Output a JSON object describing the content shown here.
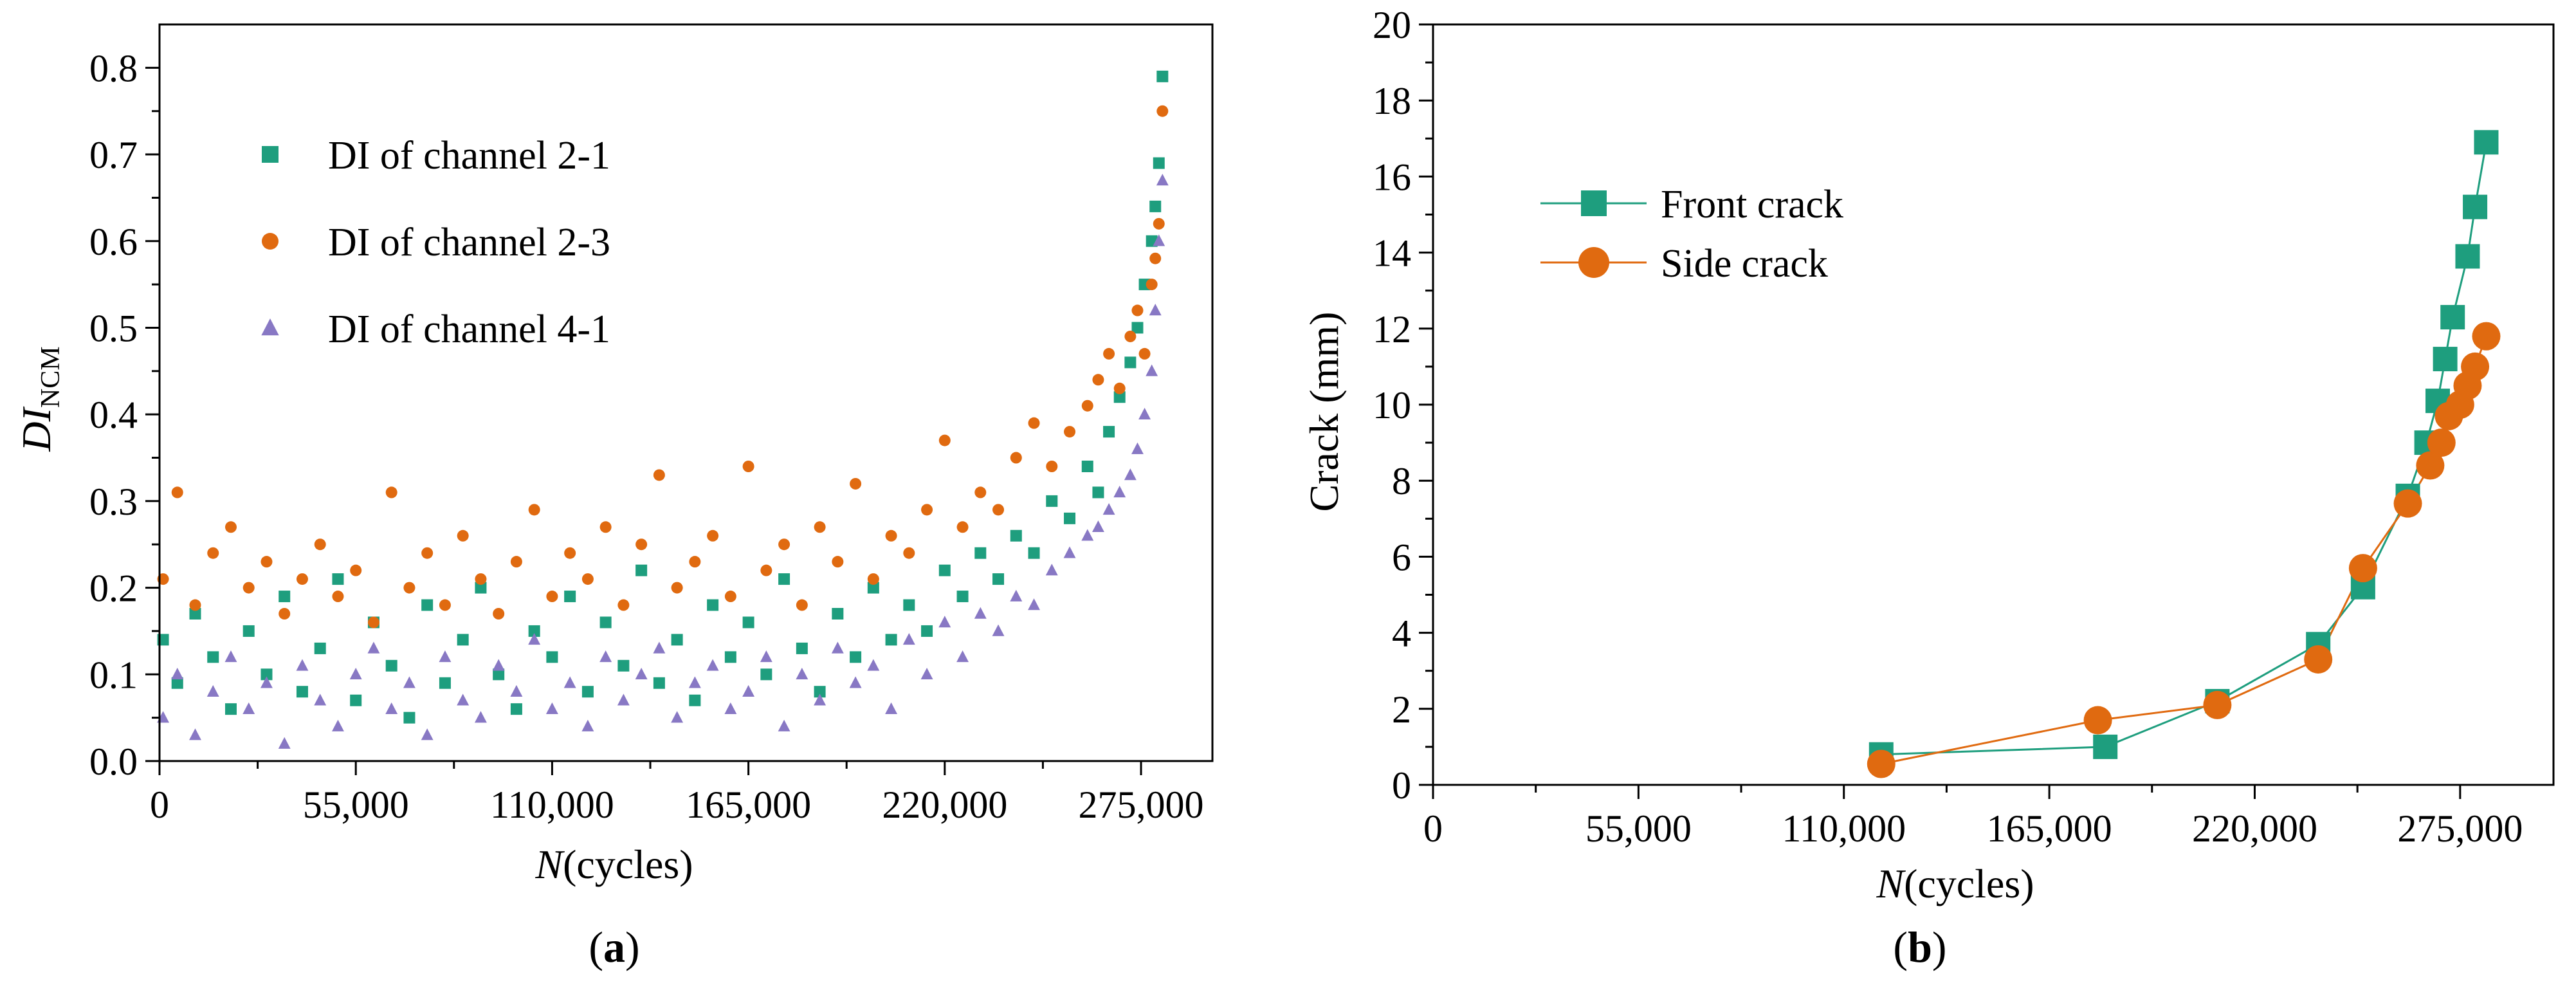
{
  "colors": {
    "green": "#1e9e7e",
    "orange": "#e06a10",
    "purple": "#8878c4",
    "axis": "#000000"
  },
  "panels": {
    "a": {
      "label_open": "(",
      "label_letter": "a",
      "label_close": ")"
    },
    "b": {
      "label_open": "(",
      "label_letter": "b",
      "label_close": ")"
    }
  },
  "chart_data": [
    {
      "id": "a",
      "type": "scatter",
      "title": "",
      "xlabel_italic": "N",
      "xlabel_rest": "(cycles)",
      "ylabel_main": "DI",
      "ylabel_sub": "NCM",
      "xlim": [
        0,
        295000
      ],
      "ylim": [
        0,
        0.85
      ],
      "xticks": [
        0,
        55000,
        110000,
        165000,
        220000,
        275000
      ],
      "xtick_labels": [
        "0",
        "55,000",
        "110,000",
        "165,000",
        "220,000",
        "275,000"
      ],
      "yticks": [
        0.0,
        0.1,
        0.2,
        0.3,
        0.4,
        0.5,
        0.6,
        0.7,
        0.8
      ],
      "ytick_labels": [
        "0.0",
        "0.1",
        "0.2",
        "0.3",
        "0.4",
        "0.5",
        "0.6",
        "0.7",
        "0.8"
      ],
      "legend_position": "top-left",
      "series": [
        {
          "name": "DI of channel 2-1",
          "marker": "square",
          "color": "#1e9e7e",
          "x": [
            1000,
            5000,
            10000,
            15000,
            20000,
            25000,
            30000,
            35000,
            40000,
            45000,
            50000,
            55000,
            60000,
            65000,
            70000,
            75000,
            80000,
            85000,
            90000,
            95000,
            100000,
            105000,
            110000,
            115000,
            120000,
            125000,
            130000,
            135000,
            140000,
            145000,
            150000,
            155000,
            160000,
            165000,
            170000,
            175000,
            180000,
            185000,
            190000,
            195000,
            200000,
            205000,
            210000,
            215000,
            220000,
            225000,
            230000,
            235000,
            240000,
            245000,
            250000,
            255000,
            260000,
            263000,
            266000,
            269000,
            272000,
            274000,
            276000,
            278000,
            279000,
            280000,
            281000
          ],
          "y": [
            0.14,
            0.09,
            0.17,
            0.12,
            0.06,
            0.15,
            0.1,
            0.19,
            0.08,
            0.13,
            0.21,
            0.07,
            0.16,
            0.11,
            0.05,
            0.18,
            0.09,
            0.14,
            0.2,
            0.1,
            0.06,
            0.15,
            0.12,
            0.19,
            0.08,
            0.16,
            0.11,
            0.22,
            0.09,
            0.14,
            0.07,
            0.18,
            0.12,
            0.16,
            0.1,
            0.21,
            0.13,
            0.08,
            0.17,
            0.12,
            0.2,
            0.14,
            0.18,
            0.15,
            0.22,
            0.19,
            0.24,
            0.21,
            0.26,
            0.24,
            0.3,
            0.28,
            0.34,
            0.31,
            0.38,
            0.42,
            0.46,
            0.5,
            0.55,
            0.6,
            0.64,
            0.69,
            0.79
          ]
        },
        {
          "name": "DI of channel 2-3",
          "marker": "circle",
          "color": "#e06a10",
          "x": [
            1000,
            5000,
            10000,
            15000,
            20000,
            25000,
            30000,
            35000,
            40000,
            45000,
            50000,
            55000,
            60000,
            65000,
            70000,
            75000,
            80000,
            85000,
            90000,
            95000,
            100000,
            105000,
            110000,
            115000,
            120000,
            125000,
            130000,
            135000,
            140000,
            145000,
            150000,
            155000,
            160000,
            165000,
            170000,
            175000,
            180000,
            185000,
            190000,
            195000,
            200000,
            205000,
            210000,
            215000,
            220000,
            225000,
            230000,
            235000,
            240000,
            245000,
            250000,
            255000,
            260000,
            263000,
            266000,
            269000,
            272000,
            274000,
            276000,
            278000,
            279000,
            280000,
            281000
          ],
          "y": [
            0.21,
            0.31,
            0.18,
            0.24,
            0.27,
            0.2,
            0.23,
            0.17,
            0.21,
            0.25,
            0.19,
            0.22,
            0.16,
            0.31,
            0.2,
            0.24,
            0.18,
            0.26,
            0.21,
            0.17,
            0.23,
            0.29,
            0.19,
            0.24,
            0.21,
            0.27,
            0.18,
            0.25,
            0.33,
            0.2,
            0.23,
            0.26,
            0.19,
            0.34,
            0.22,
            0.25,
            0.18,
            0.27,
            0.23,
            0.32,
            0.21,
            0.26,
            0.24,
            0.29,
            0.37,
            0.27,
            0.31,
            0.29,
            0.35,
            0.39,
            0.34,
            0.38,
            0.41,
            0.44,
            0.47,
            0.43,
            0.49,
            0.52,
            0.47,
            0.55,
            0.58,
            0.62,
            0.75
          ]
        },
        {
          "name": "DI of channel 4-1",
          "marker": "triangle",
          "color": "#8878c4",
          "x": [
            1000,
            5000,
            10000,
            15000,
            20000,
            25000,
            30000,
            35000,
            40000,
            45000,
            50000,
            55000,
            60000,
            65000,
            70000,
            75000,
            80000,
            85000,
            90000,
            95000,
            100000,
            105000,
            110000,
            115000,
            120000,
            125000,
            130000,
            135000,
            140000,
            145000,
            150000,
            155000,
            160000,
            165000,
            170000,
            175000,
            180000,
            185000,
            190000,
            195000,
            200000,
            205000,
            210000,
            215000,
            220000,
            225000,
            230000,
            235000,
            240000,
            245000,
            250000,
            255000,
            260000,
            263000,
            266000,
            269000,
            272000,
            274000,
            276000,
            278000,
            279000,
            280000,
            281000
          ],
          "y": [
            0.05,
            0.1,
            0.03,
            0.08,
            0.12,
            0.06,
            0.09,
            0.02,
            0.11,
            0.07,
            0.04,
            0.1,
            0.13,
            0.06,
            0.09,
            0.03,
            0.12,
            0.07,
            0.05,
            0.11,
            0.08,
            0.14,
            0.06,
            0.09,
            0.04,
            0.12,
            0.07,
            0.1,
            0.13,
            0.05,
            0.09,
            0.11,
            0.06,
            0.08,
            0.12,
            0.04,
            0.1,
            0.07,
            0.13,
            0.09,
            0.11,
            0.06,
            0.14,
            0.1,
            0.16,
            0.12,
            0.17,
            0.15,
            0.19,
            0.18,
            0.22,
            0.24,
            0.26,
            0.27,
            0.29,
            0.31,
            0.33,
            0.36,
            0.4,
            0.45,
            0.52,
            0.6,
            0.67
          ]
        }
      ]
    },
    {
      "id": "b",
      "type": "line",
      "title": "",
      "xlabel_italic": "N",
      "xlabel_rest": "(cycles)",
      "ylabel": "Crack (mm)",
      "xlim": [
        0,
        300000
      ],
      "ylim": [
        0,
        20
      ],
      "xticks": [
        0,
        55000,
        110000,
        165000,
        220000,
        275000
      ],
      "xtick_labels": [
        "0",
        "55,000",
        "110,000",
        "165,000",
        "220,000",
        "275,000"
      ],
      "yticks": [
        0,
        2,
        4,
        6,
        8,
        10,
        12,
        14,
        16,
        18,
        20
      ],
      "ytick_labels": [
        "0",
        "2",
        "4",
        "6",
        "8",
        "10",
        "12",
        "14",
        "16",
        "18",
        "20"
      ],
      "legend_position": "top-left",
      "series": [
        {
          "name": "Front crack",
          "marker": "square",
          "color": "#1e9e7e",
          "x": [
            120000,
            180000,
            210000,
            237000,
            249000,
            261000,
            266000,
            269000,
            271000,
            273000,
            277000,
            279000,
            282000
          ],
          "y": [
            0.8,
            1.0,
            2.2,
            3.7,
            5.2,
            7.6,
            9.0,
            10.1,
            11.2,
            12.3,
            13.9,
            15.2,
            16.9
          ]
        },
        {
          "name": "Side crack",
          "marker": "circle",
          "color": "#e06a10",
          "x": [
            120000,
            178000,
            210000,
            237000,
            249000,
            261000,
            267000,
            270000,
            272000,
            275000,
            277000,
            279000,
            282000
          ],
          "y": [
            0.55,
            1.7,
            2.1,
            3.3,
            5.7,
            7.4,
            8.4,
            9.0,
            9.7,
            10.0,
            10.5,
            11.0,
            11.8
          ]
        }
      ]
    }
  ]
}
